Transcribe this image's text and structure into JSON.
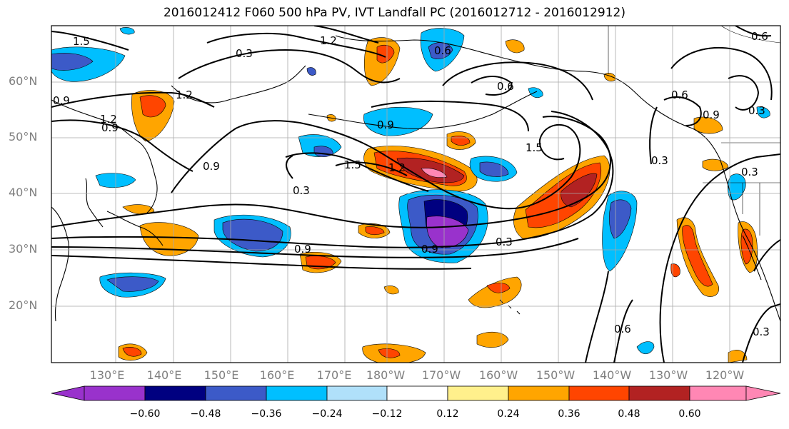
{
  "title": "2016012412 F060 500 hPa PV, IVT Landfall PC (2016012712 - 2016012912)",
  "latitude_labels": [
    "60°N",
    "50°N",
    "40°N",
    "30°N",
    "20°N"
  ],
  "longitude_labels": [
    "130°E",
    "140°E",
    "150°E",
    "160°E",
    "170°E",
    "180°W",
    "170°W",
    "160°W",
    "150°W",
    "140°W",
    "130°W",
    "120°W"
  ],
  "contour_labels": [
    "1.5",
    "1.2",
    "0.3",
    "0.6",
    "0.9",
    "1.2",
    "0.9",
    "1.2",
    "0.9",
    "0.9",
    "0.3",
    "1.5",
    "1.2",
    "1.5",
    "0.9",
    "0.9",
    "0.3",
    "0.6",
    "0.9",
    "0.3",
    "0.6",
    "0.6",
    "0.3",
    "0.6",
    "0.3",
    "0.3"
  ],
  "colorbar": {
    "ticks": [
      "−0.60",
      "−0.48",
      "−0.36",
      "−0.24",
      "−0.12",
      "0.12",
      "0.24",
      "0.36",
      "0.48",
      "0.60"
    ],
    "colors": [
      "#9932cc",
      "#000080",
      "#3c5ac8",
      "#00bfff",
      "#b0e0fa",
      "#ffffff",
      "#fff08c",
      "#ffa500",
      "#ff4500",
      "#b22222",
      "#ff87b4"
    ]
  },
  "colors": {
    "contour": "#000000",
    "grid": "#a9a9a9",
    "axis_label": "#7f7f7f"
  }
}
